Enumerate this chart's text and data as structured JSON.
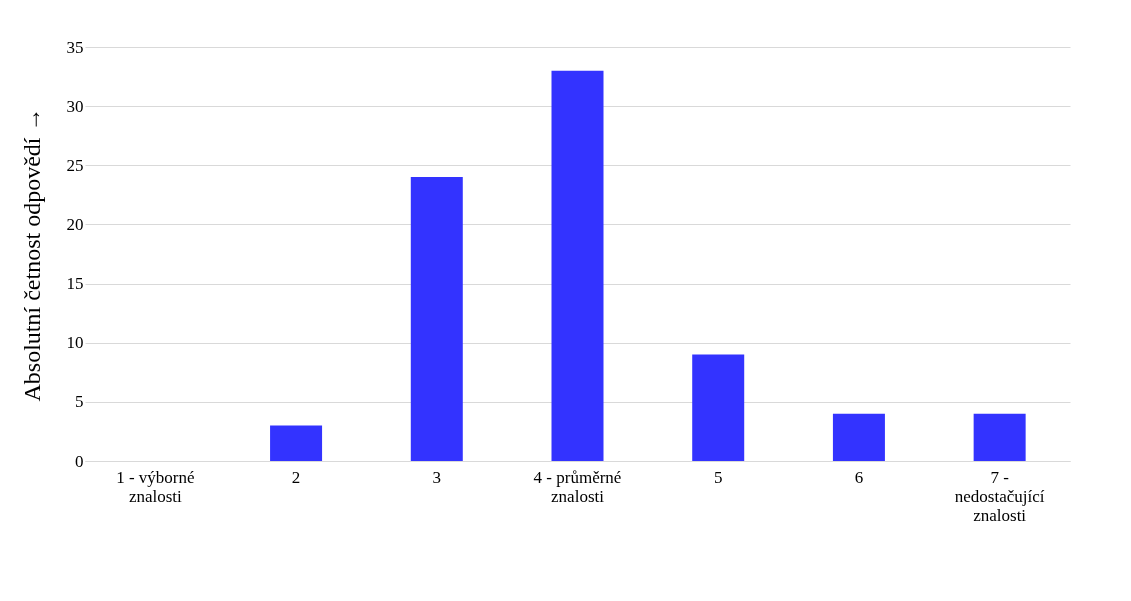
{
  "chart_data": {
    "type": "bar",
    "categories": [
      "1 - výborné znalosti",
      "2",
      "3",
      "4 - průměrné znalosti",
      "5",
      "6",
      "7 - nedostačující znalosti"
    ],
    "values": [
      0,
      3,
      24,
      33,
      9,
      4,
      4
    ],
    "color": "#3333ff",
    "ylabel": "Absolutní četnost odpovědí  →",
    "ylim": [
      0,
      35
    ],
    "yticks": [
      0,
      5,
      10,
      15,
      20,
      25,
      30,
      35
    ],
    "grid": "y"
  }
}
